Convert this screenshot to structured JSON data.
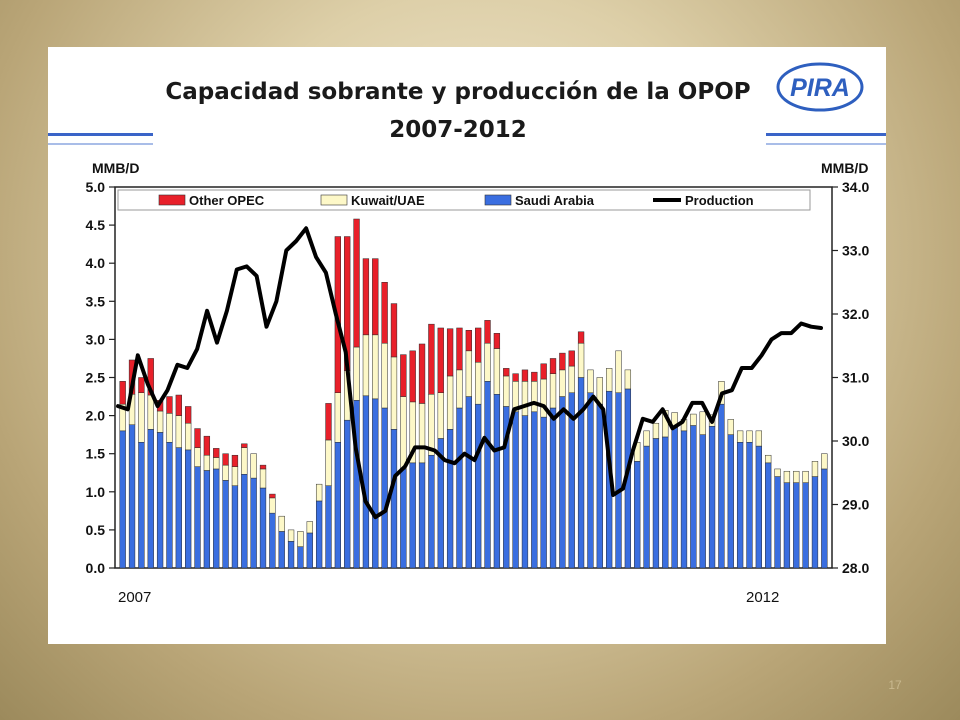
{
  "slide": {
    "number": "17"
  },
  "logo": {
    "text": "PIRA"
  },
  "chart_data": {
    "type": "bar",
    "title": "Capacidad sobrante y producción de la OPOP",
    "subtitle": "2007-2012",
    "left_axis": {
      "unit": "MMB/D",
      "range": [
        0,
        5
      ],
      "ticks": [
        "0.0",
        "0.5",
        "1.0",
        "1.5",
        "2.0",
        "2.5",
        "3.0",
        "3.5",
        "4.0",
        "4.5",
        "5.0"
      ]
    },
    "right_axis": {
      "unit": "MMB/D",
      "range": [
        28,
        34
      ],
      "ticks": [
        "28.0",
        "29.0",
        "30.0",
        "31.0",
        "32.0",
        "33.0",
        "34.0"
      ]
    },
    "x_labels": {
      "start": "2007",
      "end": "2012"
    },
    "legend": {
      "placement": "top",
      "items": [
        {
          "label": "Other OPEC",
          "color": "#e8202a",
          "kind": "bar"
        },
        {
          "label": "Kuwait/UAE",
          "color": "#fdf8c8",
          "kind": "bar"
        },
        {
          "label": "Saudi Arabia",
          "color": "#3a6ee0",
          "kind": "bar"
        },
        {
          "label": "Production",
          "color": "#000000",
          "kind": "line"
        }
      ]
    },
    "stack_series": [
      "Saudi Arabia",
      "Kuwait/UAE",
      "Other OPEC"
    ],
    "saudi": [
      1.8,
      1.88,
      1.65,
      1.82,
      1.78,
      1.65,
      1.58,
      1.55,
      1.33,
      1.28,
      1.3,
      1.15,
      1.08,
      1.23,
      1.18,
      1.05,
      0.72,
      0.48,
      0.35,
      0.28,
      0.46,
      0.88,
      1.08,
      1.65,
      1.94,
      2.2,
      2.26,
      2.22,
      2.1,
      1.82,
      1.3,
      1.38,
      1.38,
      1.48,
      1.7,
      1.82,
      2.1,
      2.25,
      2.15,
      2.45,
      2.28,
      2.12,
      2.05,
      2.0,
      2.05,
      1.98,
      2.1,
      2.25,
      2.3,
      2.5,
      2.3,
      2.15,
      2.32,
      2.3,
      2.35,
      1.4,
      1.6,
      1.7,
      1.72,
      1.84,
      1.8,
      1.87,
      1.75,
      1.86,
      2.15,
      1.75,
      1.65,
      1.65,
      1.6,
      1.38,
      1.2,
      1.12,
      1.12,
      1.12,
      1.2,
      1.3
    ],
    "kuwait_uae": [
      0.35,
      0.4,
      0.65,
      0.45,
      0.28,
      0.38,
      0.42,
      0.35,
      0.25,
      0.2,
      0.15,
      0.2,
      0.25,
      0.35,
      0.32,
      0.25,
      0.2,
      0.2,
      0.15,
      0.2,
      0.15,
      0.22,
      0.6,
      0.65,
      0.65,
      0.7,
      0.8,
      0.84,
      0.85,
      0.95,
      0.95,
      0.8,
      0.78,
      0.8,
      0.6,
      0.7,
      0.5,
      0.6,
      0.55,
      0.5,
      0.6,
      0.4,
      0.4,
      0.45,
      0.4,
      0.5,
      0.45,
      0.35,
      0.35,
      0.45,
      0.3,
      0.35,
      0.3,
      0.55,
      0.25,
      0.25,
      0.2,
      0.2,
      0.35,
      0.2,
      0.15,
      0.15,
      0.3,
      0.15,
      0.3,
      0.2,
      0.15,
      0.15,
      0.2,
      0.1,
      0.1,
      0.15,
      0.15,
      0.15,
      0.2,
      0.2
    ],
    "other_opec": [
      0.3,
      0.45,
      0.2,
      0.48,
      0.14,
      0.22,
      0.27,
      0.22,
      0.25,
      0.25,
      0.12,
      0.15,
      0.15,
      0.05,
      0.0,
      0.05,
      0.05,
      0.0,
      0.0,
      0.0,
      0.0,
      0.0,
      0.48,
      2.05,
      1.76,
      1.68,
      1.0,
      1.0,
      0.8,
      0.7,
      0.55,
      0.67,
      0.78,
      0.92,
      0.85,
      0.62,
      0.55,
      0.27,
      0.45,
      0.3,
      0.2,
      0.1,
      0.1,
      0.15,
      0.12,
      0.2,
      0.2,
      0.22,
      0.2,
      0.15,
      0.0,
      0.0,
      0.0,
      0.0,
      0.0,
      0.0,
      0.0,
      0.0,
      0.0,
      0.0,
      0.0,
      0.0,
      0.0,
      0.0,
      0.0,
      0.0,
      0.0,
      0.0,
      0.0,
      0.0,
      0.0,
      0.0,
      0.0,
      0.0,
      0.0,
      0.0
    ],
    "production": [
      30.55,
      30.5,
      31.35,
      30.9,
      30.55,
      30.8,
      31.2,
      31.15,
      31.45,
      32.05,
      31.55,
      32.05,
      32.7,
      32.75,
      32.6,
      31.8,
      32.2,
      33.0,
      33.15,
      33.35,
      32.9,
      32.65,
      32.0,
      31.4,
      29.9,
      29.05,
      28.8,
      28.9,
      29.45,
      29.6,
      29.9,
      29.9,
      29.85,
      29.7,
      29.65,
      29.8,
      29.7,
      30.05,
      29.85,
      29.9,
      30.5,
      30.55,
      30.6,
      30.55,
      30.35,
      30.5,
      30.35,
      30.5,
      30.7,
      30.5,
      29.15,
      29.25,
      29.85,
      30.35,
      30.3,
      30.5,
      30.2,
      30.3,
      30.6,
      30.6,
      30.3,
      30.75,
      30.8,
      31.15,
      31.15,
      31.35,
      31.6,
      31.7,
      31.7,
      31.85,
      31.8,
      31.78
    ]
  }
}
